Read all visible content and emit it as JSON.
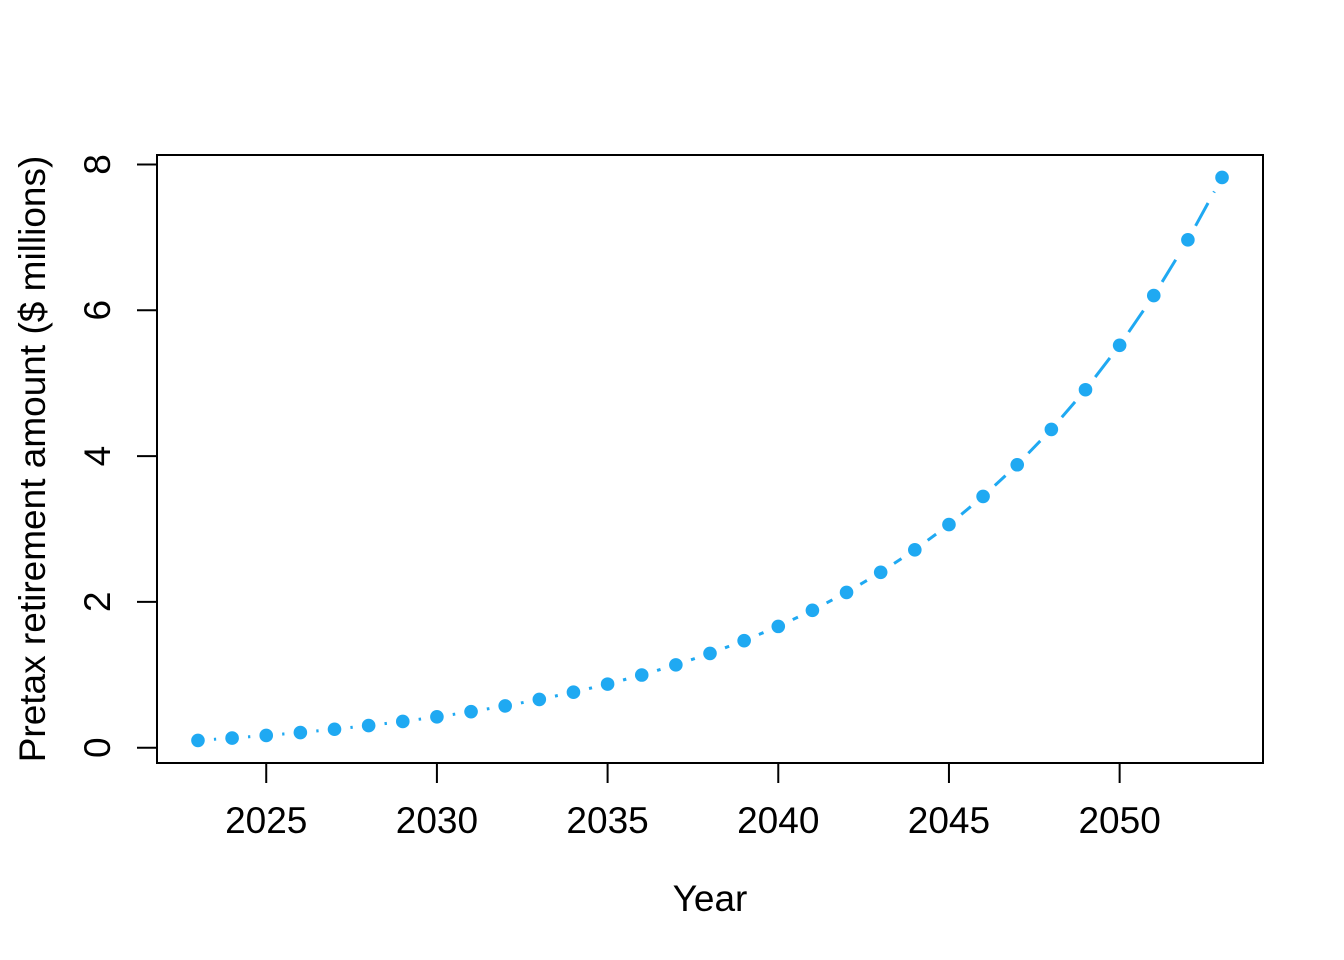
{
  "chart_data": {
    "type": "scatter",
    "title": "",
    "xlabel": "Year",
    "ylabel": "Pretax retirement amount ($ millions)",
    "x": [
      2023,
      2024,
      2025,
      2026,
      2027,
      2028,
      2029,
      2030,
      2031,
      2032,
      2033,
      2034,
      2035,
      2036,
      2037,
      2038,
      2039,
      2040,
      2041,
      2042,
      2043,
      2044,
      2045,
      2046,
      2047,
      2048,
      2049,
      2050,
      2051,
      2052,
      2053
    ],
    "values": [
      0.1,
      0.132,
      0.168,
      0.208,
      0.253,
      0.303,
      0.36,
      0.423,
      0.494,
      0.573,
      0.662,
      0.761,
      0.872,
      0.997,
      1.136,
      1.293,
      1.468,
      1.664,
      1.884,
      2.13,
      2.406,
      2.714,
      3.06,
      3.447,
      3.881,
      4.366,
      4.91,
      5.52,
      6.202,
      6.966,
      7.822
    ],
    "xticks": [
      2025,
      2030,
      2035,
      2040,
      2045,
      2050
    ],
    "yticks": [
      0,
      2,
      4,
      6,
      8
    ],
    "xlim": [
      2021.8,
      2054.2
    ],
    "ylim": [
      -0.21,
      8.13
    ],
    "grid": false,
    "legend": null,
    "marker": "filled-circle",
    "line_style": "dashed",
    "point_color": "#1FA9F2",
    "line_color": "#1FA9F2",
    "axis_color": "#000000",
    "background_color": "#ffffff"
  }
}
